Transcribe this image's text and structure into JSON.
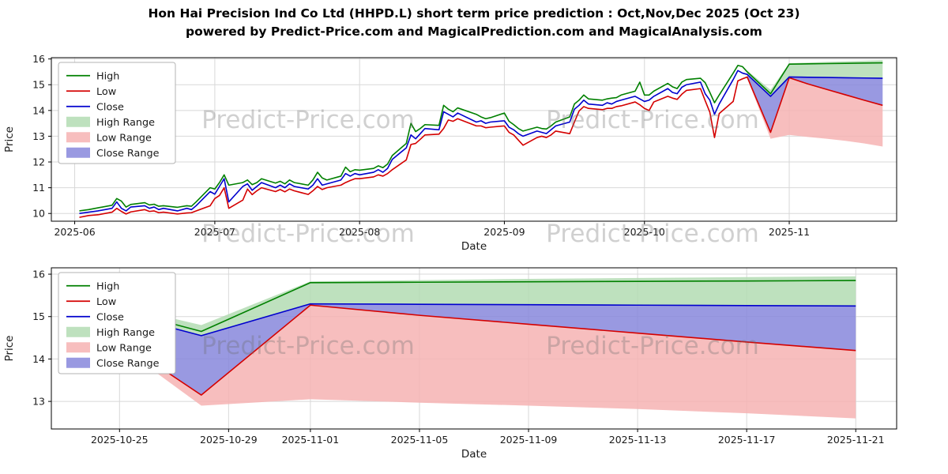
{
  "page": {
    "title": "Hon Hai Precision Ind Co Ltd (HHPD.L) short term price prediction : Oct,Nov,Dec 2025 (Oct 23)",
    "subtitle": "powered by Predict-Price.com and MagicalPrediction.com and MagicalAnalysis.com",
    "watermark": "Predict-Price.com"
  },
  "colors": {
    "high": "#008000",
    "low": "#d40000",
    "close": "#0000cd",
    "high_range": "#b3dcb3",
    "low_range": "#f6b3b3",
    "close_range": "#8787dc",
    "grid": "#d8d8d8",
    "axis": "#000000",
    "text": "#1a1a1a"
  },
  "chart_data": [
    {
      "type": "line",
      "title": "",
      "xlabel": "Date",
      "ylabel": "Price",
      "ylim": [
        9.7,
        16.05
      ],
      "yticks": [
        10,
        11,
        12,
        13,
        14,
        15,
        16
      ],
      "xdomain": [
        "2025-05-27",
        "2025-11-24"
      ],
      "xticks": [
        {
          "label": "2025-06",
          "date": "2025-06-01"
        },
        {
          "label": "2025-07",
          "date": "2025-07-01"
        },
        {
          "label": "2025-08",
          "date": "2025-08-01"
        },
        {
          "label": "2025-09",
          "date": "2025-09-01"
        },
        {
          "label": "2025-10",
          "date": "2025-10-01"
        },
        {
          "label": "2025-11",
          "date": "2025-11-01"
        }
      ],
      "legend": [
        "High",
        "Low",
        "Close",
        "High Range",
        "Low Range",
        "Close Range"
      ],
      "historical": {
        "dates": [
          "2025-06-02",
          "2025-06-04",
          "2025-06-06",
          "2025-06-09",
          "2025-06-10",
          "2025-06-11",
          "2025-06-12",
          "2025-06-13",
          "2025-06-16",
          "2025-06-17",
          "2025-06-18",
          "2025-06-19",
          "2025-06-20",
          "2025-06-23",
          "2025-06-25",
          "2025-06-26",
          "2025-06-27",
          "2025-06-30",
          "2025-07-01",
          "2025-07-02",
          "2025-07-03",
          "2025-07-04",
          "2025-07-07",
          "2025-07-08",
          "2025-07-09",
          "2025-07-10",
          "2025-07-11",
          "2025-07-14",
          "2025-07-15",
          "2025-07-16",
          "2025-07-17",
          "2025-07-18",
          "2025-07-21",
          "2025-07-22",
          "2025-07-23",
          "2025-07-24",
          "2025-07-25",
          "2025-07-28",
          "2025-07-29",
          "2025-07-30",
          "2025-07-31",
          "2025-08-01",
          "2025-08-04",
          "2025-08-05",
          "2025-08-06",
          "2025-08-07",
          "2025-08-08",
          "2025-08-11",
          "2025-08-12",
          "2025-08-13",
          "2025-08-14",
          "2025-08-15",
          "2025-08-18",
          "2025-08-19",
          "2025-08-20",
          "2025-08-21",
          "2025-08-22",
          "2025-08-26",
          "2025-08-27",
          "2025-08-28",
          "2025-08-29",
          "2025-09-01",
          "2025-09-02",
          "2025-09-03",
          "2025-09-04",
          "2025-09-05",
          "2025-09-08",
          "2025-09-09",
          "2025-09-10",
          "2025-09-11",
          "2025-09-12",
          "2025-09-15",
          "2025-09-16",
          "2025-09-17",
          "2025-09-18",
          "2025-09-19",
          "2025-09-22",
          "2025-09-23",
          "2025-09-24",
          "2025-09-25",
          "2025-09-26",
          "2025-09-29",
          "2025-09-30",
          "2025-10-01",
          "2025-10-02",
          "2025-10-03",
          "2025-10-06",
          "2025-10-07",
          "2025-10-08",
          "2025-10-09",
          "2025-10-10",
          "2025-10-13",
          "2025-10-14",
          "2025-10-15",
          "2025-10-16",
          "2025-10-17",
          "2025-10-20",
          "2025-10-21",
          "2025-10-22",
          "2025-10-23"
        ],
        "high": [
          10.1,
          10.15,
          10.22,
          10.32,
          10.58,
          10.48,
          10.25,
          10.35,
          10.42,
          10.33,
          10.36,
          10.28,
          10.3,
          10.24,
          10.3,
          10.28,
          10.45,
          11.0,
          10.95,
          11.2,
          11.5,
          11.1,
          11.2,
          11.3,
          11.12,
          11.2,
          11.35,
          11.18,
          11.25,
          11.15,
          11.3,
          11.2,
          11.1,
          11.3,
          11.6,
          11.38,
          11.3,
          11.45,
          11.8,
          11.62,
          11.7,
          11.68,
          11.75,
          11.85,
          11.78,
          11.92,
          12.25,
          12.72,
          13.5,
          13.18,
          13.3,
          13.45,
          13.42,
          14.2,
          14.05,
          13.95,
          14.1,
          13.85,
          13.75,
          13.68,
          13.72,
          13.9,
          13.58,
          13.45,
          13.3,
          13.2,
          13.35,
          13.3,
          13.28,
          13.4,
          13.55,
          13.75,
          14.25,
          14.4,
          14.6,
          14.45,
          14.4,
          14.45,
          14.48,
          14.5,
          14.6,
          14.75,
          15.1,
          14.6,
          14.6,
          14.75,
          15.05,
          14.92,
          14.85,
          15.1,
          15.2,
          15.25,
          15.08,
          14.7,
          14.3,
          14.6,
          15.45,
          15.75,
          15.7,
          15.5
        ],
        "low": [
          9.85,
          9.92,
          9.95,
          10.05,
          10.2,
          10.08,
          9.98,
          10.06,
          10.15,
          10.08,
          10.1,
          10.03,
          10.05,
          9.98,
          10.02,
          10.03,
          10.1,
          10.3,
          10.58,
          10.7,
          11.0,
          10.2,
          10.52,
          10.95,
          10.73,
          10.88,
          11.0,
          10.85,
          10.93,
          10.84,
          10.95,
          10.88,
          10.74,
          10.88,
          11.05,
          10.93,
          11.0,
          11.1,
          11.2,
          11.28,
          11.35,
          11.35,
          11.42,
          11.5,
          11.45,
          11.55,
          11.7,
          12.08,
          12.68,
          12.72,
          12.88,
          13.05,
          13.08,
          13.3,
          13.63,
          13.58,
          13.68,
          13.4,
          13.4,
          13.33,
          13.35,
          13.4,
          13.15,
          13.05,
          12.85,
          12.65,
          12.95,
          13.0,
          12.95,
          13.05,
          13.2,
          13.1,
          13.55,
          13.98,
          14.15,
          14.08,
          14.03,
          14.08,
          14.08,
          14.15,
          14.18,
          14.33,
          14.22,
          14.08,
          14.0,
          14.33,
          14.55,
          14.48,
          14.43,
          14.63,
          14.78,
          14.85,
          14.38,
          13.93,
          12.95,
          13.88,
          14.35,
          15.15,
          15.23,
          15.3
        ],
        "close": [
          10.0,
          10.05,
          10.1,
          10.2,
          10.45,
          10.2,
          10.1,
          10.25,
          10.3,
          10.2,
          10.25,
          10.15,
          10.2,
          10.1,
          10.2,
          10.15,
          10.3,
          10.85,
          10.75,
          11.05,
          11.35,
          10.45,
          11.05,
          11.15,
          10.9,
          11.05,
          11.2,
          11.0,
          11.1,
          11.0,
          11.15,
          11.05,
          10.95,
          11.1,
          11.35,
          11.1,
          11.15,
          11.3,
          11.55,
          11.45,
          11.55,
          11.5,
          11.6,
          11.7,
          11.6,
          11.75,
          12.1,
          12.55,
          13.05,
          12.9,
          13.1,
          13.3,
          13.25,
          13.95,
          13.85,
          13.75,
          13.9,
          13.55,
          13.6,
          13.5,
          13.55,
          13.6,
          13.35,
          13.25,
          13.1,
          13.0,
          13.2,
          13.15,
          13.1,
          13.25,
          13.4,
          13.55,
          14.05,
          14.2,
          14.4,
          14.25,
          14.2,
          14.3,
          14.25,
          14.35,
          14.4,
          14.55,
          14.45,
          14.35,
          14.4,
          14.55,
          14.85,
          14.7,
          14.65,
          14.9,
          15.0,
          15.1,
          14.65,
          14.4,
          13.85,
          14.25,
          15.2,
          15.55,
          15.45,
          15.4
        ]
      },
      "forecast": {
        "dates": [
          "2025-10-23",
          "2025-10-28",
          "2025-11-01",
          "2025-11-05",
          "2025-11-09",
          "2025-11-13",
          "2025-11-17",
          "2025-11-21"
        ],
        "high": [
          15.5,
          14.65,
          15.8,
          15.81,
          15.82,
          15.83,
          15.84,
          15.85
        ],
        "high_upper": [
          15.55,
          14.8,
          15.83,
          15.86,
          15.89,
          15.91,
          15.93,
          15.95
        ],
        "close": [
          15.4,
          14.55,
          15.3,
          15.29,
          15.28,
          15.27,
          15.26,
          15.25
        ],
        "low": [
          15.3,
          13.15,
          15.27,
          15.03,
          14.82,
          14.61,
          14.4,
          14.2
        ],
        "low_lower": [
          15.25,
          12.9,
          13.05,
          12.97,
          12.9,
          12.82,
          12.72,
          12.6
        ]
      }
    },
    {
      "type": "line",
      "title": "",
      "xlabel": "Date",
      "ylabel": "Price",
      "ylim": [
        12.35,
        16.15
      ],
      "yticks": [
        13,
        14,
        15,
        16
      ],
      "xdomain": [
        "2025-10-22T12:00",
        "2025-11-22T12:00"
      ],
      "xticks": [
        {
          "label": "2025-10-25",
          "date": "2025-10-25"
        },
        {
          "label": "2025-10-29",
          "date": "2025-10-29"
        },
        {
          "label": "2025-11-01",
          "date": "2025-11-01"
        },
        {
          "label": "2025-11-05",
          "date": "2025-11-05"
        },
        {
          "label": "2025-11-09",
          "date": "2025-11-09"
        },
        {
          "label": "2025-11-13",
          "date": "2025-11-13"
        },
        {
          "label": "2025-11-17",
          "date": "2025-11-17"
        },
        {
          "label": "2025-11-21",
          "date": "2025-11-21"
        }
      ],
      "legend": [
        "High",
        "Low",
        "Close",
        "High Range",
        "Low Range",
        "Close Range"
      ],
      "forecast": {
        "dates": [
          "2025-10-23",
          "2025-10-28",
          "2025-11-01",
          "2025-11-05",
          "2025-11-09",
          "2025-11-13",
          "2025-11-17",
          "2025-11-21"
        ],
        "high": [
          15.5,
          14.65,
          15.8,
          15.81,
          15.82,
          15.83,
          15.84,
          15.85
        ],
        "high_upper": [
          15.55,
          14.8,
          15.83,
          15.86,
          15.89,
          15.91,
          15.93,
          15.95
        ],
        "close": [
          15.4,
          14.55,
          15.3,
          15.29,
          15.28,
          15.27,
          15.26,
          15.25
        ],
        "low": [
          15.3,
          13.15,
          15.27,
          15.03,
          14.82,
          14.61,
          14.4,
          14.2
        ],
        "low_lower": [
          15.25,
          12.9,
          13.05,
          12.97,
          12.9,
          12.82,
          12.72,
          12.6
        ]
      }
    }
  ]
}
